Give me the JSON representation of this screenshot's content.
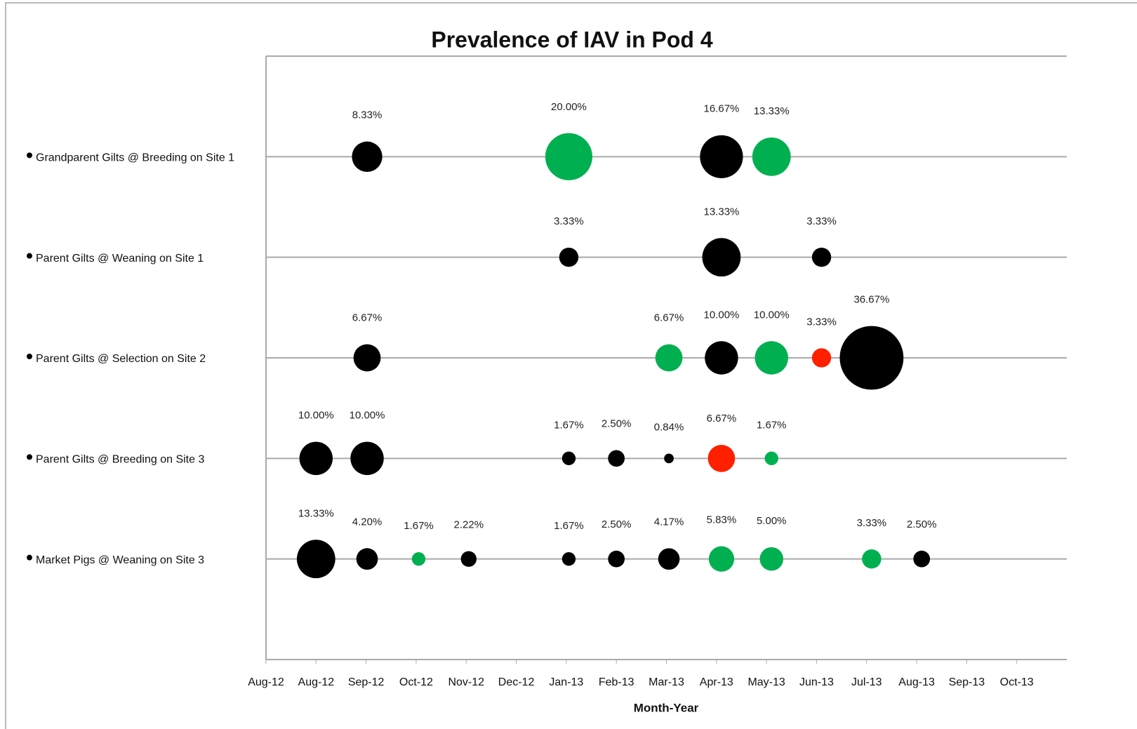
{
  "chart_data": {
    "type": "bubble",
    "title": "Prevalence of IAV in Pod 4",
    "xlabel": "Month-Year",
    "xlim": [
      0,
      16
    ],
    "xticks": [
      {
        "value": 0,
        "label": "Aug-12"
      },
      {
        "value": 1,
        "label": "Aug-12"
      },
      {
        "value": 2,
        "label": "Sep-12"
      },
      {
        "value": 3,
        "label": "Oct-12"
      },
      {
        "value": 4,
        "label": "Nov-12"
      },
      {
        "value": 5,
        "label": "Dec-12"
      },
      {
        "value": 6,
        "label": "Jan-13"
      },
      {
        "value": 7,
        "label": "Feb-13"
      },
      {
        "value": 8,
        "label": "Mar-13"
      },
      {
        "value": 9,
        "label": "Apr-13"
      },
      {
        "value": 10,
        "label": "May-13"
      },
      {
        "value": 11,
        "label": "Jun-13"
      },
      {
        "value": 12,
        "label": "Jul-13"
      },
      {
        "value": 13,
        "label": "Aug-13"
      },
      {
        "value": 14,
        "label": "Sep-13"
      },
      {
        "value": 15,
        "label": "Oct-13"
      }
    ],
    "series": [
      {
        "name": "Grandparent Gilts @ Breeding on Site 1",
        "x": [
          2.02,
          6.05,
          9.1,
          10.1
        ],
        "values": [
          8.33,
          20.0,
          16.67,
          13.33
        ],
        "value_labels": [
          "8.33%",
          "20.00%",
          "16.67%",
          "13.33%"
        ],
        "colors": [
          "#000000",
          "#00b050",
          "#000000",
          "#00b050"
        ]
      },
      {
        "name": "Parent Gilts @ Weaning on Site 1",
        "x": [
          6.05,
          9.1,
          11.1
        ],
        "values": [
          3.33,
          13.33,
          3.33
        ],
        "value_labels": [
          "3.33%",
          "13.33%",
          "3.33%"
        ],
        "colors": [
          "#000000",
          "#000000",
          "#000000"
        ]
      },
      {
        "name": "Parent Gilts @ Selection on Site 2",
        "x": [
          2.02,
          8.05,
          9.1,
          10.1,
          11.1,
          12.1
        ],
        "values": [
          6.67,
          6.67,
          10.0,
          10.0,
          3.33,
          36.67
        ],
        "value_labels": [
          "6.67%",
          "6.67%",
          "10.00%",
          "10.00%",
          "3.33%",
          "36.67%"
        ],
        "colors": [
          "#000000",
          "#00b050",
          "#000000",
          "#00b050",
          "#ff2000",
          "#000000"
        ]
      },
      {
        "name": "Parent Gilts @ Breeding on Site 3",
        "x": [
          1.0,
          2.02,
          6.05,
          7.0,
          8.05,
          9.1,
          10.1
        ],
        "values": [
          10.0,
          10.0,
          1.67,
          2.5,
          0.84,
          6.67,
          1.67
        ],
        "value_labels": [
          "10.00%",
          "10.00%",
          "1.67%",
          "2.50%",
          "0.84%",
          "6.67%",
          "1.67%"
        ],
        "colors": [
          "#000000",
          "#000000",
          "#000000",
          "#000000",
          "#000000",
          "#ff2000",
          "#00b050"
        ]
      },
      {
        "name": "Market Pigs @ Weaning on Site 3",
        "x": [
          1.0,
          2.02,
          3.05,
          4.05,
          6.05,
          7.0,
          8.05,
          9.1,
          10.1,
          12.1,
          13.1
        ],
        "values": [
          13.33,
          4.2,
          1.67,
          2.22,
          1.67,
          2.5,
          4.17,
          5.83,
          5.0,
          3.33,
          2.5
        ],
        "value_labels": [
          "13.33%",
          "4.20%",
          "1.67%",
          "2.22%",
          "1.67%",
          "2.50%",
          "4.17%",
          "5.83%",
          "5.00%",
          "3.33%",
          "2.50%"
        ],
        "colors": [
          "#000000",
          "#000000",
          "#00b050",
          "#000000",
          "#000000",
          "#000000",
          "#000000",
          "#00b050",
          "#00b050",
          "#00b050",
          "#000000"
        ]
      }
    ]
  }
}
